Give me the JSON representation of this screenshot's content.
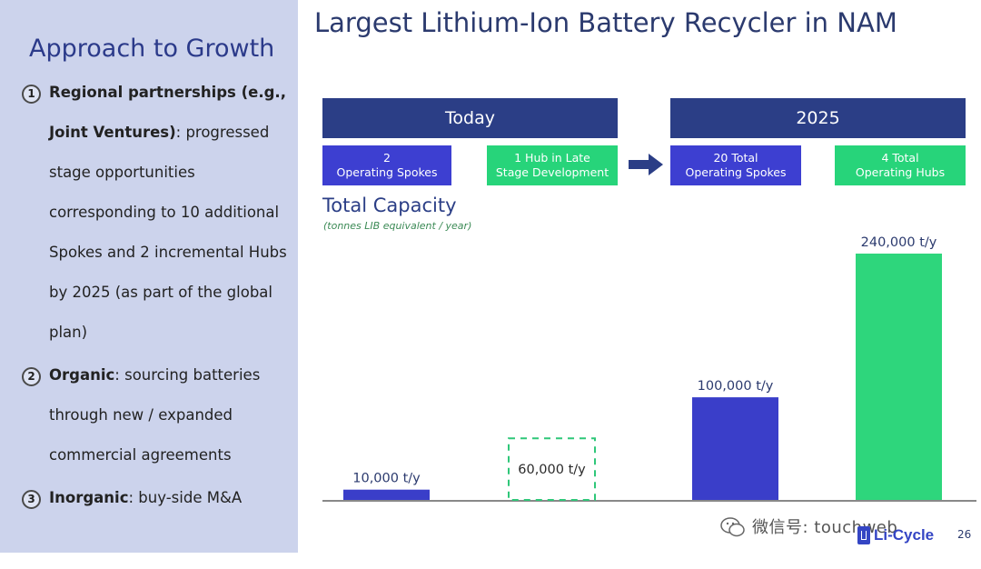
{
  "sidebar": {
    "title": "Approach to Growth",
    "points": [
      {
        "num": "1",
        "bold": "Regional partnerships (e.g., Joint Ventures)",
        "rest": ": progressed stage opportunities corresponding to 10 additional Spokes and 2 incremental Hubs by 2025 (as part of the global plan)"
      },
      {
        "num": "2",
        "bold": "Organic",
        "rest": ": sourcing batteries through new / expanded commercial agreements"
      },
      {
        "num": "3",
        "bold": "Inorganic",
        "rest": ": buy-side M&A"
      }
    ]
  },
  "main": {
    "title": "Largest Lithium-Ion Battery Recycler in NAM",
    "today_label": "Today",
    "future_label": "2025",
    "boxes": [
      {
        "line1": "2",
        "line2": "Operating Spokes"
      },
      {
        "line1": "1 Hub in Late",
        "line2": "Stage Development"
      },
      {
        "line1": "20 Total",
        "line2": "Operating Spokes"
      },
      {
        "line1": "4 Total",
        "line2": "Operating Hubs"
      }
    ],
    "capacity_title": "Total Capacity",
    "capacity_subtitle": "(tonnes LIB equivalent / year)"
  },
  "chart_data": {
    "type": "bar",
    "title": "Total Capacity",
    "ylabel": "tonnes LIB equivalent / year",
    "categories": [
      "Today: 2 Operating Spokes",
      "Today: 1 Hub in Late Stage Development",
      "2025: 20 Total Operating Spokes",
      "2025: 4 Total Operating Hubs"
    ],
    "values": [
      10000,
      60000,
      100000,
      240000
    ],
    "labels": [
      "10,000 t/y",
      "60,000 t/y",
      "100,000 t/y",
      "240,000 t/y"
    ],
    "styles": [
      "solid",
      "dashed",
      "solid",
      "solid"
    ],
    "colors": [
      "#3a3ec9",
      "#2fc779",
      "#3a3ec9",
      "#2ed67c"
    ],
    "ylim": [
      0,
      240000
    ]
  },
  "footer": {
    "watermark": "微信号: touchweb",
    "logo": "Li-Cycle",
    "page_number": "26"
  }
}
